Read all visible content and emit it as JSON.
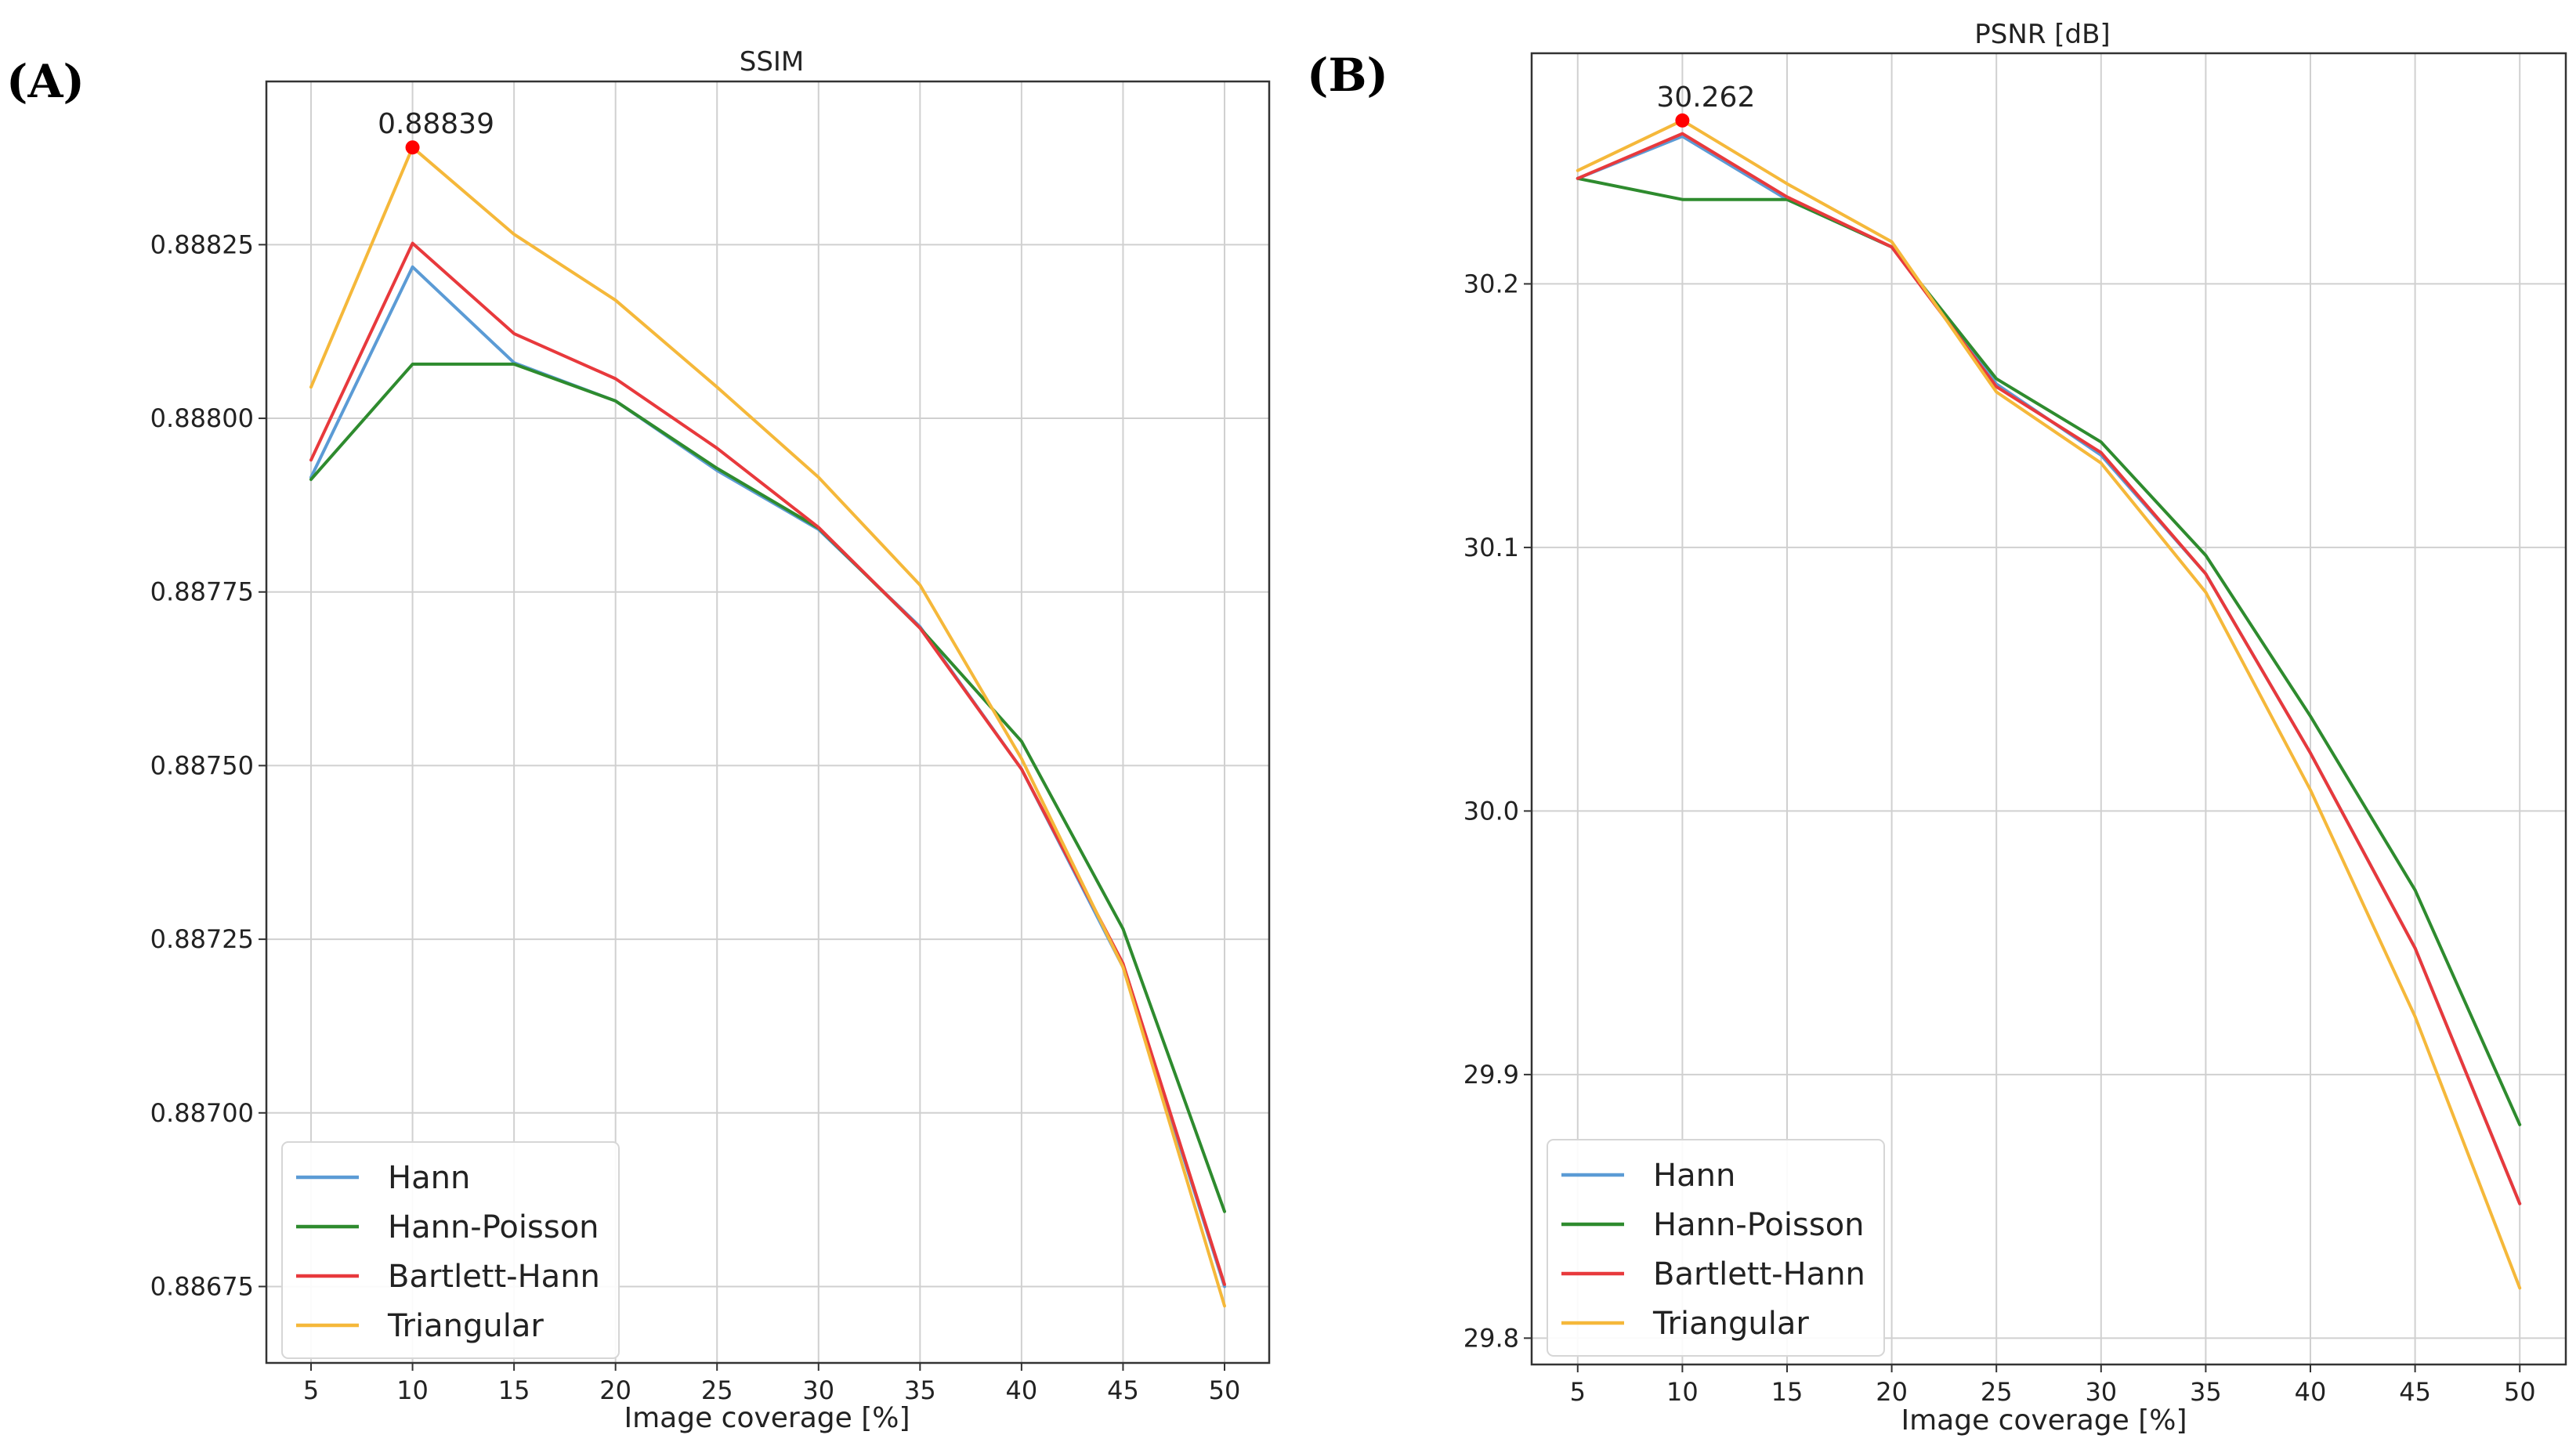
{
  "chart_data": [
    {
      "type": "line",
      "panel_label": "(A)",
      "title": "SSIM",
      "xlabel": "Image coverage [%]",
      "ylabel": "",
      "x": [
        5,
        10,
        15,
        20,
        25,
        30,
        35,
        40,
        45,
        50
      ],
      "xticks": [
        "5",
        "10",
        "15",
        "20",
        "25",
        "30",
        "35",
        "40",
        "45",
        "50"
      ],
      "xlim": [
        2.8,
        52.2
      ],
      "ylim": [
        0.88664,
        0.888485
      ],
      "yticks": [
        0.88675,
        0.887,
        0.88725,
        0.8875,
        0.88775,
        0.888,
        0.88825
      ],
      "yticklabels": [
        "0.88675",
        "0.88700",
        "0.88725",
        "0.88750",
        "0.88775",
        "0.88800",
        "0.88825"
      ],
      "grid": true,
      "legend_position": "bottom-left",
      "series": [
        {
          "name": "Hann",
          "color": "#5b9bd5",
          "values": [
            0.887915,
            0.888218,
            0.88808,
            0.888025,
            0.887925,
            0.88784,
            0.8877,
            0.887495,
            0.88721,
            0.88675
          ]
        },
        {
          "name": "Hann-Poisson",
          "color": "#2e8b2e",
          "values": [
            0.887912,
            0.888078,
            0.888078,
            0.888025,
            0.887928,
            0.887842,
            0.887698,
            0.887535,
            0.887265,
            0.886858
          ]
        },
        {
          "name": "Bartlett-Hann",
          "color": "#e8393c",
          "values": [
            0.88794,
            0.888252,
            0.888122,
            0.888057,
            0.887957,
            0.887843,
            0.887698,
            0.887495,
            0.887215,
            0.886753
          ]
        },
        {
          "name": "Triangular",
          "color": "#f5b83a",
          "values": [
            0.888045,
            0.88839,
            0.888265,
            0.88817,
            0.888045,
            0.887915,
            0.88776,
            0.88751,
            0.88721,
            0.886722
          ]
        }
      ],
      "highlight": {
        "x": 10,
        "y": 0.88839,
        "label": "0.88839",
        "color": "#ff0000"
      }
    },
    {
      "type": "line",
      "panel_label": "(B)",
      "title": "PSNR [dB]",
      "xlabel": "Image coverage [%]",
      "ylabel": "",
      "x": [
        5,
        10,
        15,
        20,
        25,
        30,
        35,
        40,
        45,
        50
      ],
      "xticks": [
        "5",
        "10",
        "15",
        "20",
        "25",
        "30",
        "35",
        "40",
        "45",
        "50"
      ],
      "xlim": [
        2.8,
        52.2
      ],
      "ylim": [
        29.79,
        30.2875
      ],
      "yticks": [
        29.8,
        29.9,
        30.0,
        30.1,
        30.2
      ],
      "yticklabels": [
        "29.8",
        "29.9",
        "30.0",
        "30.1",
        "30.2"
      ],
      "grid": true,
      "legend_position": "bottom-left",
      "series": [
        {
          "name": "Hann",
          "color": "#5b9bd5",
          "values": [
            30.24,
            30.256,
            30.232,
            30.214,
            30.162,
            30.135,
            30.09,
            30.022,
            29.948,
            29.851
          ]
        },
        {
          "name": "Hann-Poisson",
          "color": "#2e8b2e",
          "values": [
            30.24,
            30.232,
            30.232,
            30.214,
            30.164,
            30.14,
            30.097,
            30.036,
            29.97,
            29.881
          ]
        },
        {
          "name": "Bartlett-Hann",
          "color": "#e8393c",
          "values": [
            30.24,
            30.257,
            30.233,
            30.214,
            30.161,
            30.136,
            30.09,
            30.022,
            29.948,
            29.851
          ]
        },
        {
          "name": "Triangular",
          "color": "#f5b83a",
          "values": [
            30.243,
            30.262,
            30.238,
            30.216,
            30.159,
            30.132,
            30.083,
            30.008,
            29.922,
            29.819
          ]
        }
      ],
      "highlight": {
        "x": 10,
        "y": 30.262,
        "label": "30.262",
        "color": "#ff0000"
      }
    }
  ]
}
